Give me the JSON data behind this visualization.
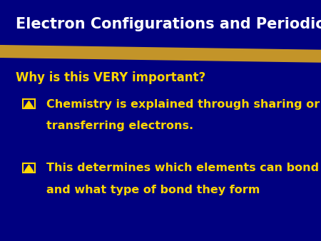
{
  "bg_color": "#000080",
  "title": "Electron Configurations and Periodicity.",
  "title_color": "#FFFFFF",
  "title_fontsize": 15,
  "subtitle": "Why is this VERY important?",
  "subtitle_color": "#FFD700",
  "subtitle_fontsize": 12,
  "bullet_color": "#FFD700",
  "bullet1_line1": "Chemistry is explained through sharing or",
  "bullet1_line2": "transferring electrons.",
  "bullet2_line1": "This determines which elements can bond",
  "bullet2_line2": "and what type of bond they form",
  "text_fontsize": 11.5,
  "stripe_color": "#DAA520"
}
